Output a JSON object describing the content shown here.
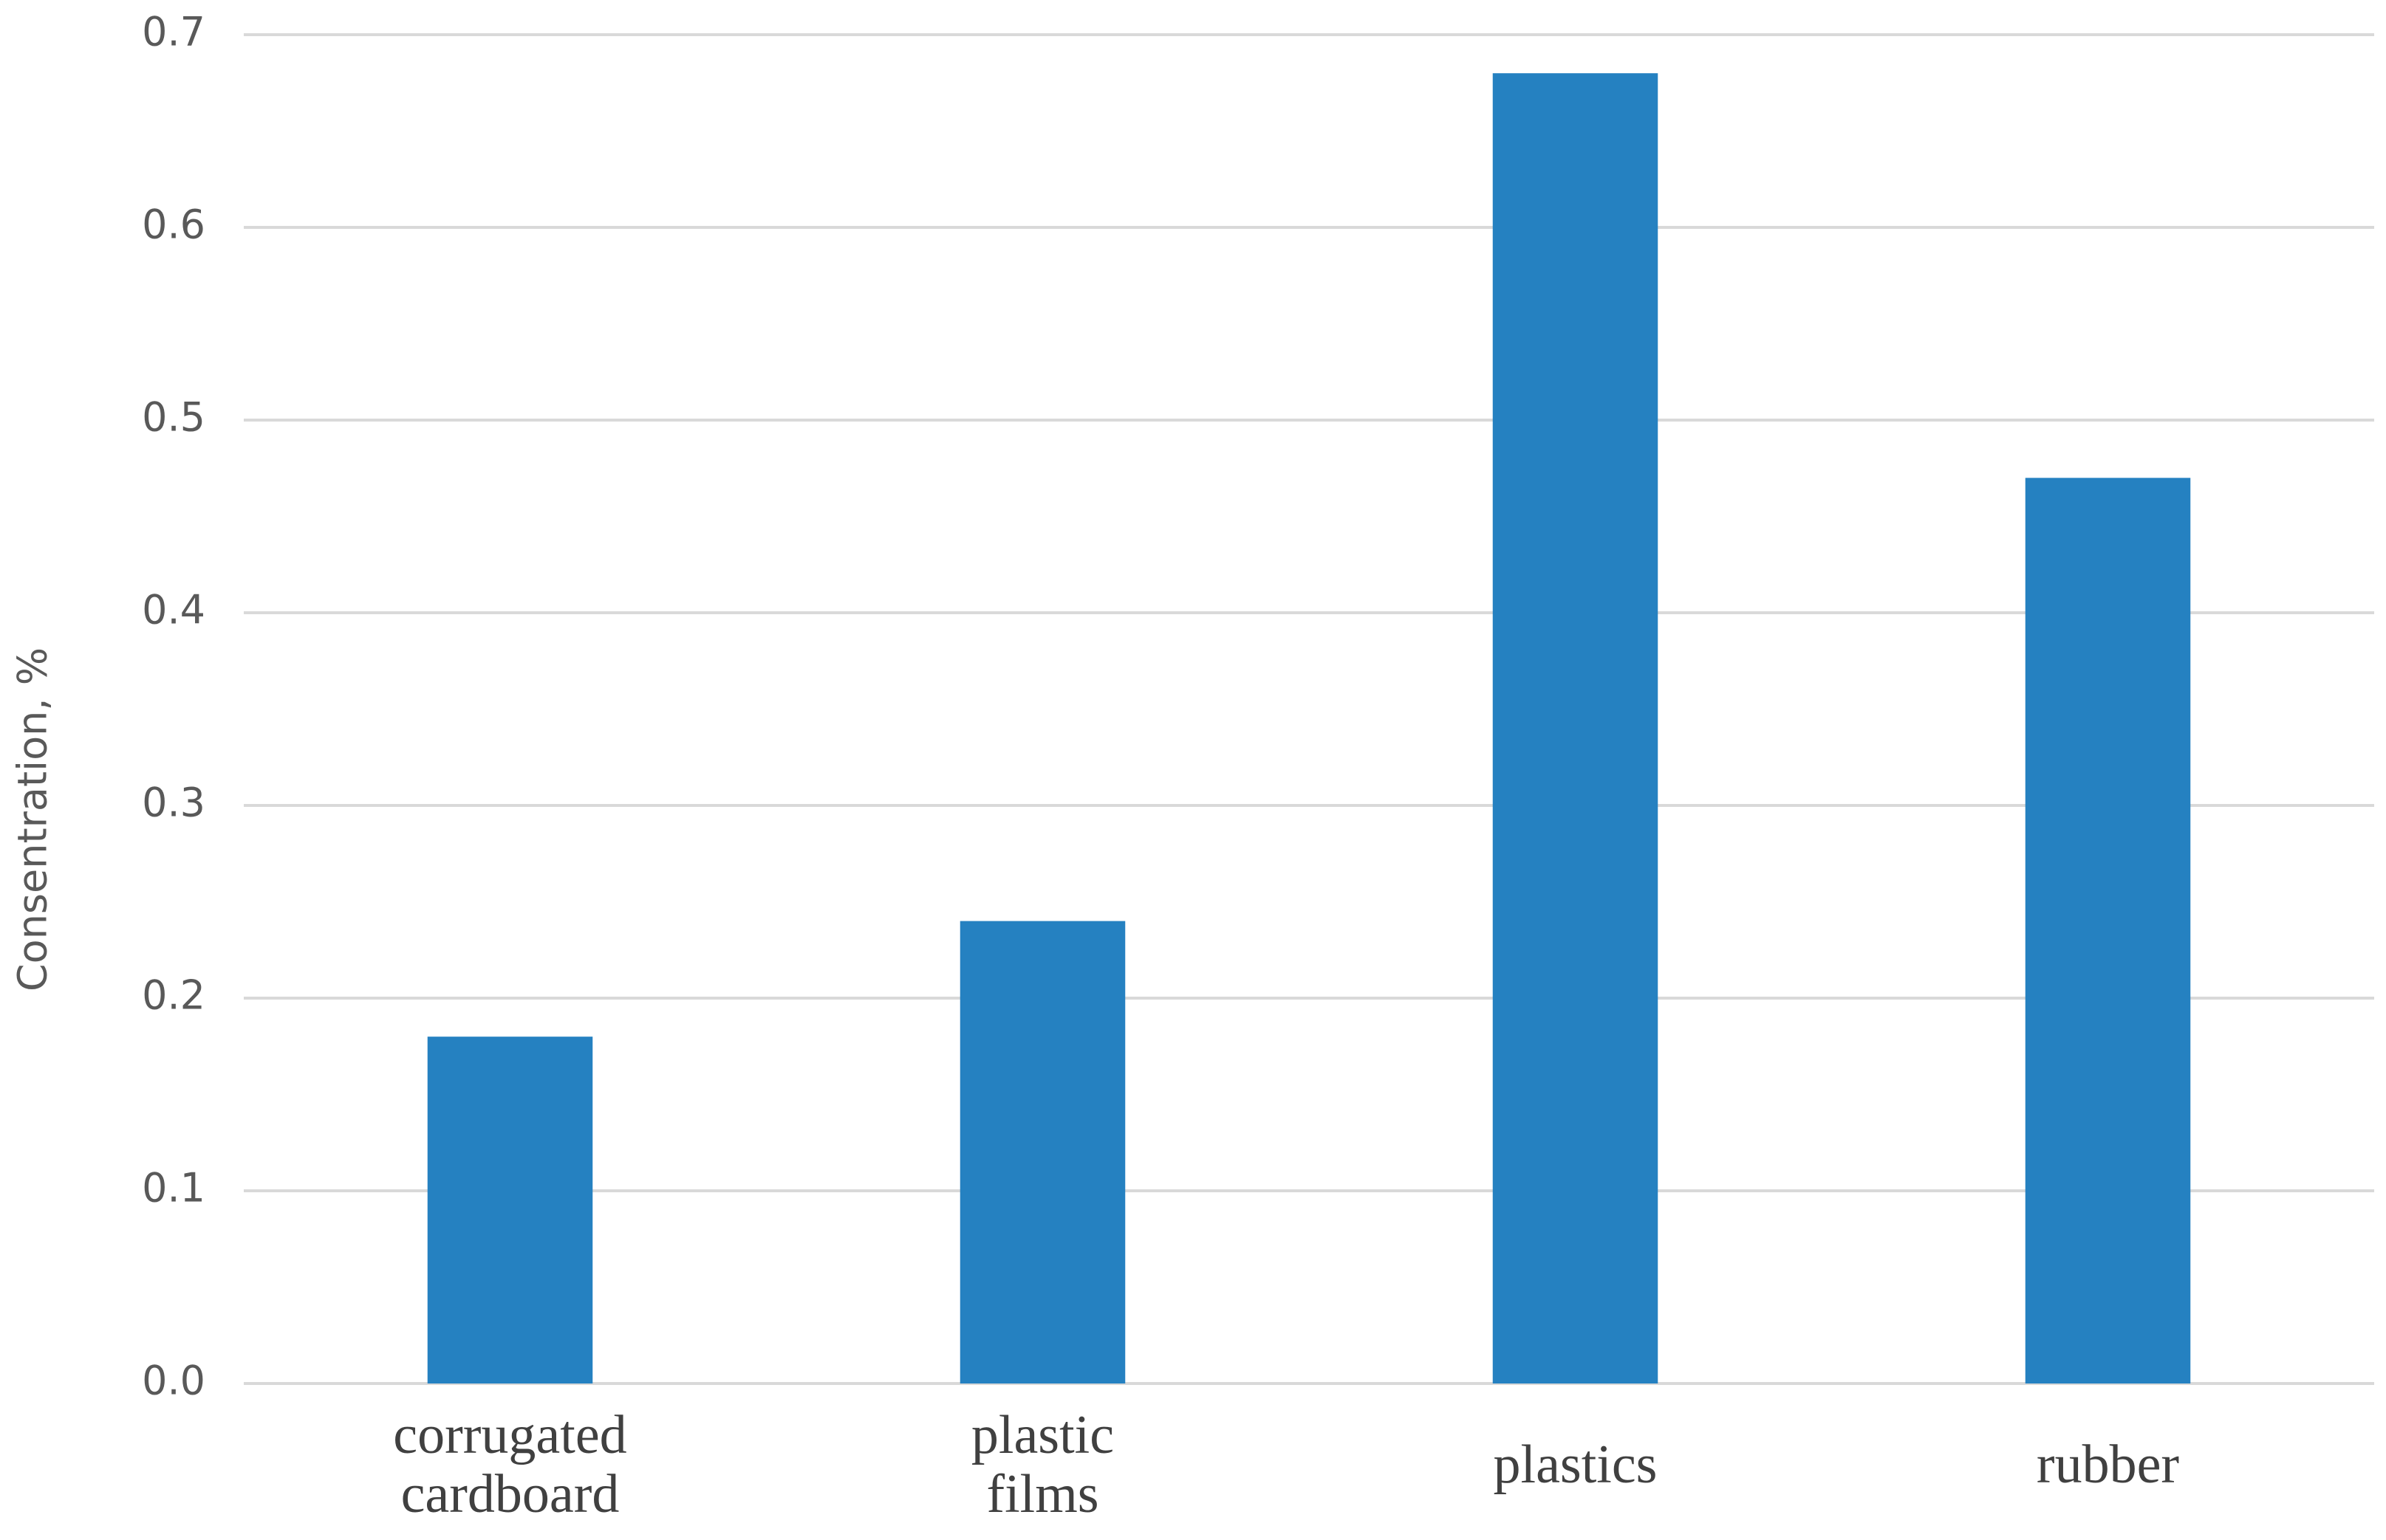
{
  "chart_data": {
    "type": "bar",
    "y_label": "Consentration, %",
    "categories": [
      "corrugated cardboard",
      "plastic films",
      "plastics",
      "rubber"
    ],
    "values": [
      0.18,
      0.24,
      0.68,
      0.47
    ],
    "color": "#2581c1",
    "ylim": [
      0,
      0.7
    ],
    "yticks": [
      {
        "value": 0,
        "label": "0.0"
      },
      0.1,
      0.2,
      0.3,
      0.4,
      0.5,
      0.6,
      0.7
    ],
    "grid": true
  }
}
